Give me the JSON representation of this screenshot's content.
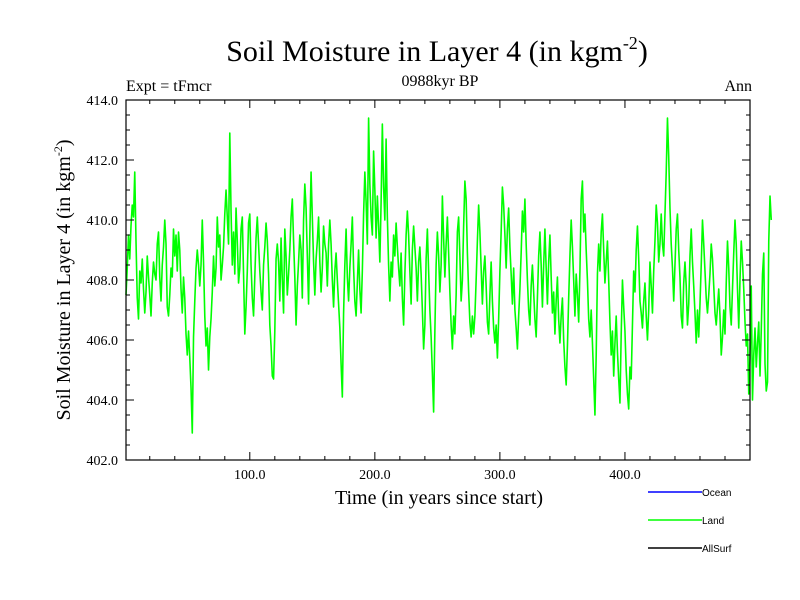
{
  "chart_data": {
    "type": "line",
    "title": "Soil Moisture in Layer 4 (in kgm",
    "title_sup": "-2",
    "title_close": ")",
    "subtitle": "0988kyr BP",
    "left_annotation": "Expt = tFmcr",
    "right_annotation": "Ann",
    "xlabel": "Time (in years since start)",
    "ylabel": "Soil Moisture in Layer 4 (in kgm",
    "ylabel_sup": "-2",
    "ylabel_close": ")",
    "xlim": [
      1,
      500
    ],
    "ylim": [
      402,
      414
    ],
    "x_ticks": [
      {
        "value": 100,
        "label": "100.0"
      },
      {
        "value": 200,
        "label": "200.0"
      },
      {
        "value": 300,
        "label": "300.0"
      },
      {
        "value": 400,
        "label": "400.0"
      }
    ],
    "y_ticks": [
      {
        "value": 402,
        "label": "402.0"
      },
      {
        "value": 404,
        "label": "404.0"
      },
      {
        "value": 406,
        "label": "406.0"
      },
      {
        "value": 408,
        "label": "408.0"
      },
      {
        "value": 410,
        "label": "410.0"
      },
      {
        "value": 412,
        "label": "412.0"
      },
      {
        "value": 414,
        "label": "414.0"
      }
    ],
    "legend": [
      {
        "name": "Ocean",
        "color": "#0000ff"
      },
      {
        "name": "Land",
        "color": "#00ff00"
      },
      {
        "name": "AllSurf",
        "color": "#000000"
      }
    ],
    "series": [
      {
        "name": "Land",
        "color": "#00ff00",
        "x_start": 1,
        "x_step": 1,
        "values": [
          407.5,
          408.4,
          409.5,
          408.7,
          409.8,
          410.5,
          410.1,
          411.6,
          409.3,
          407.4,
          406.7,
          408.3,
          407.9,
          408.7,
          407.7,
          406.9,
          407.6,
          408.8,
          408.1,
          407.5,
          406.8,
          407.9,
          408.6,
          408.2,
          408.0,
          409.2,
          409.6,
          408.1,
          407.3,
          408.5,
          409.1,
          410.0,
          409.2,
          407.1,
          406.8,
          407.5,
          408.4,
          408.1,
          409.7,
          408.8,
          409.5,
          408.3,
          409.6,
          409.0,
          407.7,
          406.9,
          408.1,
          407.4,
          406.2,
          405.5,
          406.3,
          405.4,
          404.4,
          402.9,
          406.1,
          407.3,
          408.4,
          409.0,
          408.5,
          407.8,
          408.5,
          410.0,
          408.6,
          406.8,
          405.8,
          406.4,
          405.0,
          406.1,
          406.7,
          407.6,
          408.8,
          407.8,
          408.4,
          410.1,
          409.1,
          409.5,
          408.0,
          408.5,
          409.1,
          410.2,
          411.0,
          410.1,
          409.2,
          412.9,
          410.3,
          408.5,
          409.6,
          408.2,
          410.4,
          409.3,
          407.9,
          408.4,
          409.7,
          410.1,
          408.2,
          406.2,
          407.1,
          408.3,
          409.9,
          410.2,
          408.5,
          407.4,
          406.8,
          408.1,
          409.4,
          410.1,
          409.2,
          408.3,
          407.6,
          407.0,
          408.5,
          409.1,
          409.9,
          409.3,
          408.2,
          406.5,
          405.8,
          404.8,
          404.7,
          406.3,
          408.7,
          409.2,
          408.6,
          407.3,
          409.4,
          408.0,
          406.9,
          409.7,
          408.8,
          407.5,
          408.2,
          409.0,
          410.1,
          410.7,
          409.3,
          408.1,
          406.5,
          407.8,
          408.6,
          409.5,
          409.0,
          407.4,
          410.0,
          411.2,
          410.4,
          408.8,
          407.2,
          409.5,
          411.6,
          410.1,
          408.6,
          407.5,
          408.7,
          409.3,
          410.1,
          408.6,
          407.6,
          408.4,
          409.8,
          409.2,
          408.9,
          407.8,
          409.2,
          410.0,
          409.2,
          408.0,
          407.1,
          408.3,
          408.9,
          408.0,
          407.2,
          406.4,
          405.2,
          404.1,
          406.9,
          408.5,
          409.7,
          408.1,
          407.3,
          408.4,
          409.2,
          410.1,
          408.4,
          407.3,
          406.8,
          407.9,
          409.0,
          407.7,
          406.9,
          408.3,
          410.2,
          411.6,
          410.6,
          409.2,
          413.4,
          411.2,
          410.1,
          409.5,
          412.3,
          411.0,
          409.4,
          410.8,
          409.8,
          408.6,
          410.6,
          413.2,
          411.1,
          410.0,
          412.7,
          410.1,
          408.5,
          407.3,
          408.6,
          408.1,
          409.5,
          408.8,
          409.9,
          409.1,
          408.4,
          407.8,
          408.9,
          407.4,
          406.5,
          408.2,
          409.5,
          410.3,
          409.5,
          408.3,
          407.2,
          409.0,
          409.8,
          409.1,
          408.4,
          407.3,
          408.6,
          409.1,
          408.2,
          407.0,
          405.7,
          406.5,
          408.7,
          409.7,
          408.3,
          407.0,
          406.1,
          404.9,
          403.6,
          406.3,
          408.5,
          409.6,
          408.8,
          407.6,
          408.5,
          410.8,
          409.4,
          408.1,
          409.2,
          410.1,
          408.9,
          407.6,
          406.5,
          405.7,
          406.8,
          406.2,
          407.5,
          409.6,
          410.1,
          408.8,
          407.3,
          408.0,
          409.8,
          411.3,
          410.7,
          408.9,
          407.6,
          406.6,
          406.1,
          406.8,
          406.2,
          406.8,
          408.0,
          409.3,
          410.5,
          409.6,
          408.4,
          407.2,
          408.3,
          408.8,
          407.8,
          406.6,
          406.2,
          407.5,
          408.6,
          407.3,
          406.4,
          405.9,
          406.5,
          405.4,
          406.7,
          408.3,
          409.6,
          411.1,
          410.5,
          409.5,
          408.4,
          409.7,
          410.4,
          409.1,
          408.2,
          407.2,
          408.4,
          407.0,
          406.4,
          405.7,
          406.8,
          407.7,
          408.9,
          410.3,
          409.6,
          410.7,
          409.2,
          408.0,
          407.0,
          406.5,
          407.8,
          408.5,
          407.6,
          406.7,
          406.1,
          407.4,
          408.8,
          409.6,
          408.5,
          407.1,
          408.5,
          409.7,
          408.4,
          407.2,
          408.6,
          409.5,
          408.1,
          406.9,
          407.6,
          406.2,
          407.3,
          408.1,
          406.7,
          405.9,
          406.8,
          407.4,
          406.0,
          405.1,
          404.5,
          405.8,
          407.4,
          408.8,
          410.0,
          409.1,
          408.0,
          406.8,
          408.2,
          407.5,
          406.6,
          408.3,
          410.7,
          411.3,
          409.6,
          410.2,
          409.0,
          408.0,
          406.7,
          406.1,
          407.0,
          405.9,
          404.7,
          403.5,
          405.5,
          408.2,
          409.2,
          408.3,
          409.6,
          410.2,
          409.0,
          407.9,
          408.6,
          409.3,
          408.0,
          406.6,
          405.5,
          406.3,
          404.8,
          405.9,
          406.8,
          405.6,
          404.7,
          403.9,
          406.2,
          408.0,
          407.1,
          406.3,
          405.0,
          404.2,
          403.7,
          405.1,
          404.7,
          406.5,
          408.3,
          407.6,
          409.0,
          409.8,
          408.7,
          407.3,
          406.9,
          406.4,
          407.3,
          407.9,
          406.8,
          406.0,
          407.0,
          408.6,
          407.8,
          406.9,
          408.3,
          409.3,
          410.5,
          409.9,
          408.6,
          409.2,
          410.2,
          409.2,
          408.8,
          410.2,
          411.6,
          413.4,
          412.1,
          410.4,
          409.2,
          408.4,
          407.3,
          408.5,
          409.7,
          410.2,
          409.0,
          408.1,
          406.8,
          406.4,
          407.9,
          408.6,
          407.8,
          406.5,
          407.2,
          408.8,
          409.7,
          408.6,
          407.8,
          406.9,
          405.9,
          407.0,
          406.1,
          407.2,
          408.5,
          410.0,
          409.2,
          408.3,
          407.4,
          406.9,
          407.5,
          408.2,
          409.2,
          408.7,
          407.8,
          406.9,
          406.5,
          407.1,
          407.7,
          406.8,
          405.5,
          406.1,
          407.0,
          406.2,
          407.9,
          409.3,
          408.4,
          407.1,
          406.5,
          407.7,
          408.9,
          410.0,
          409.2,
          407.7,
          406.4,
          408.0,
          409.3,
          408.6,
          407.7,
          406.6,
          405.8,
          406.2,
          404.2,
          405.4,
          407.8,
          404.0,
          405.5,
          406.4,
          405.1,
          405.9,
          406.6,
          404.8,
          406.3,
          408.2,
          408.9,
          405.2,
          404.3,
          404.6,
          409.3,
          410.8,
          410.0
        ]
      }
    ]
  }
}
